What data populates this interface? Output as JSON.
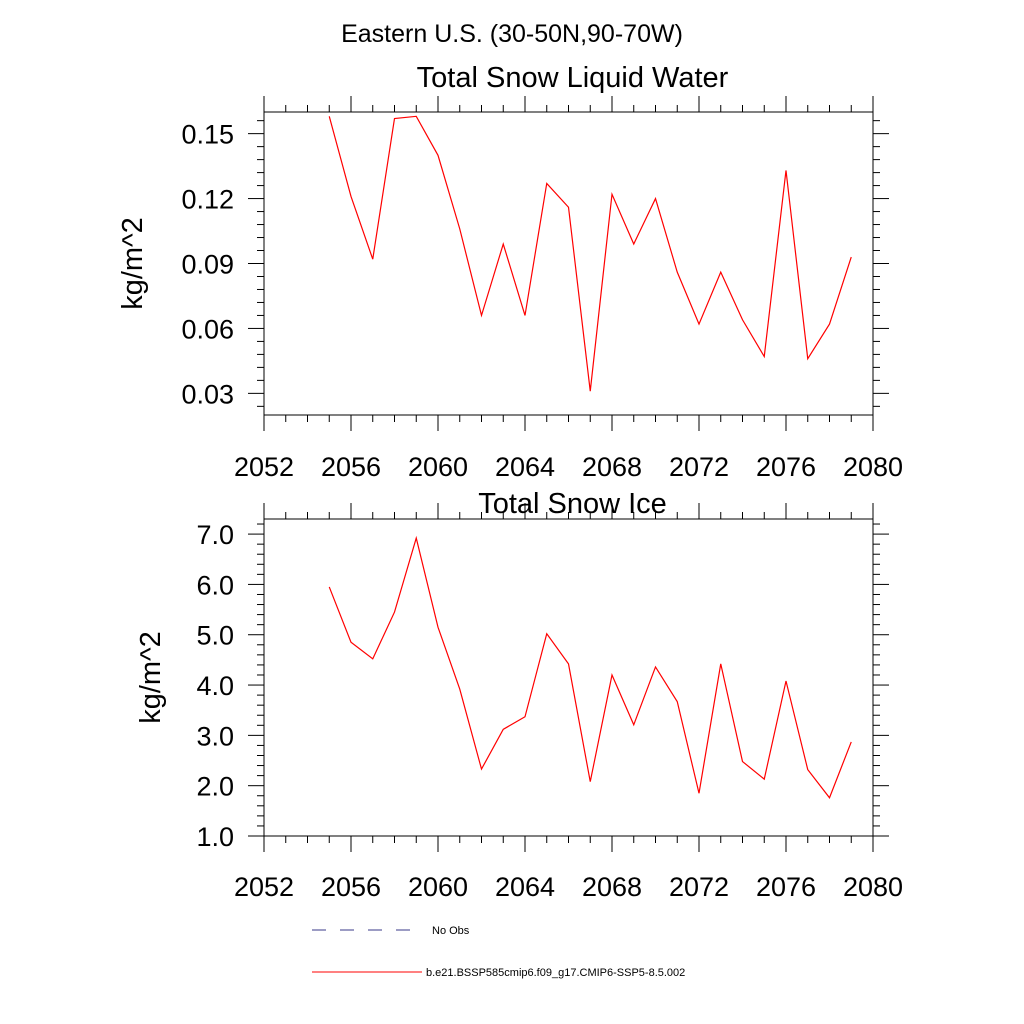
{
  "suptitle": "Eastern U.S. (30-50N,90-70W)",
  "colors": {
    "series": "#ff0000",
    "obs": "#3a3a8a",
    "axis": "#000000"
  },
  "legend": {
    "placement": "bottom-left",
    "entries": [
      {
        "label": "No Obs",
        "style": "dashed",
        "color": "#3a3a8a"
      },
      {
        "label": "b.e21.BSSP585cmip6.f09_g17.CMIP6-SSP5-8.5.002",
        "style": "solid",
        "color": "#ff0000"
      }
    ]
  },
  "chart_data": [
    {
      "type": "line",
      "title": "Total Snow Liquid Water",
      "xlabel": "",
      "ylabel": "kg/m^2",
      "xlim": [
        2052,
        2080
      ],
      "ylim": [
        0.02,
        0.16
      ],
      "xticks": [
        2052,
        2056,
        2060,
        2064,
        2068,
        2072,
        2076,
        2080
      ],
      "xtick_labels": [
        "2052",
        "2056",
        "2060",
        "2064",
        "2068",
        "2072",
        "2076",
        "2080"
      ],
      "yticks": [
        0.03,
        0.06,
        0.09,
        0.12,
        0.15
      ],
      "ytick_labels": [
        "0.03",
        "0.06",
        "0.09",
        "0.12",
        "0.15"
      ],
      "grid": false,
      "x": [
        2055,
        2056,
        2057,
        2058,
        2059,
        2060,
        2061,
        2062,
        2063,
        2064,
        2065,
        2066,
        2067,
        2068,
        2069,
        2070,
        2071,
        2072,
        2073,
        2074,
        2075,
        2076,
        2077,
        2078,
        2079
      ],
      "series": [
        {
          "values": [
            0.158,
            0.121,
            0.092,
            0.157,
            0.158,
            0.14,
            0.106,
            0.066,
            0.099,
            0.066,
            0.127,
            0.116,
            0.031,
            0.122,
            0.099,
            0.12,
            0.086,
            0.062,
            0.086,
            0.064,
            0.047,
            0.133,
            0.046,
            0.062,
            0.093
          ]
        }
      ]
    },
    {
      "type": "line",
      "title": "Total Snow Ice",
      "xlabel": "",
      "ylabel": "kg/m^2",
      "xlim": [
        2052,
        2080
      ],
      "ylim": [
        1.0,
        7.3
      ],
      "xticks": [
        2052,
        2056,
        2060,
        2064,
        2068,
        2072,
        2076,
        2080
      ],
      "xtick_labels": [
        "2052",
        "2056",
        "2060",
        "2064",
        "2068",
        "2072",
        "2076",
        "2080"
      ],
      "yticks": [
        1.0,
        2.0,
        3.0,
        4.0,
        5.0,
        6.0,
        7.0
      ],
      "ytick_labels": [
        "1.0",
        "2.0",
        "3.0",
        "4.0",
        "5.0",
        "6.0",
        "7.0"
      ],
      "grid": false,
      "x": [
        2055,
        2056,
        2057,
        2058,
        2059,
        2060,
        2061,
        2062,
        2063,
        2064,
        2065,
        2066,
        2067,
        2068,
        2069,
        2070,
        2071,
        2072,
        2073,
        2074,
        2075,
        2076,
        2077,
        2078,
        2079
      ],
      "series": [
        {
          "values": [
            5.95,
            4.85,
            4.52,
            5.45,
            6.92,
            5.15,
            3.92,
            2.33,
            3.12,
            3.37,
            5.02,
            4.42,
            2.08,
            4.2,
            3.21,
            4.36,
            3.67,
            1.85,
            4.42,
            2.48,
            2.13,
            4.08,
            2.32,
            1.76,
            2.87
          ]
        }
      ]
    }
  ]
}
